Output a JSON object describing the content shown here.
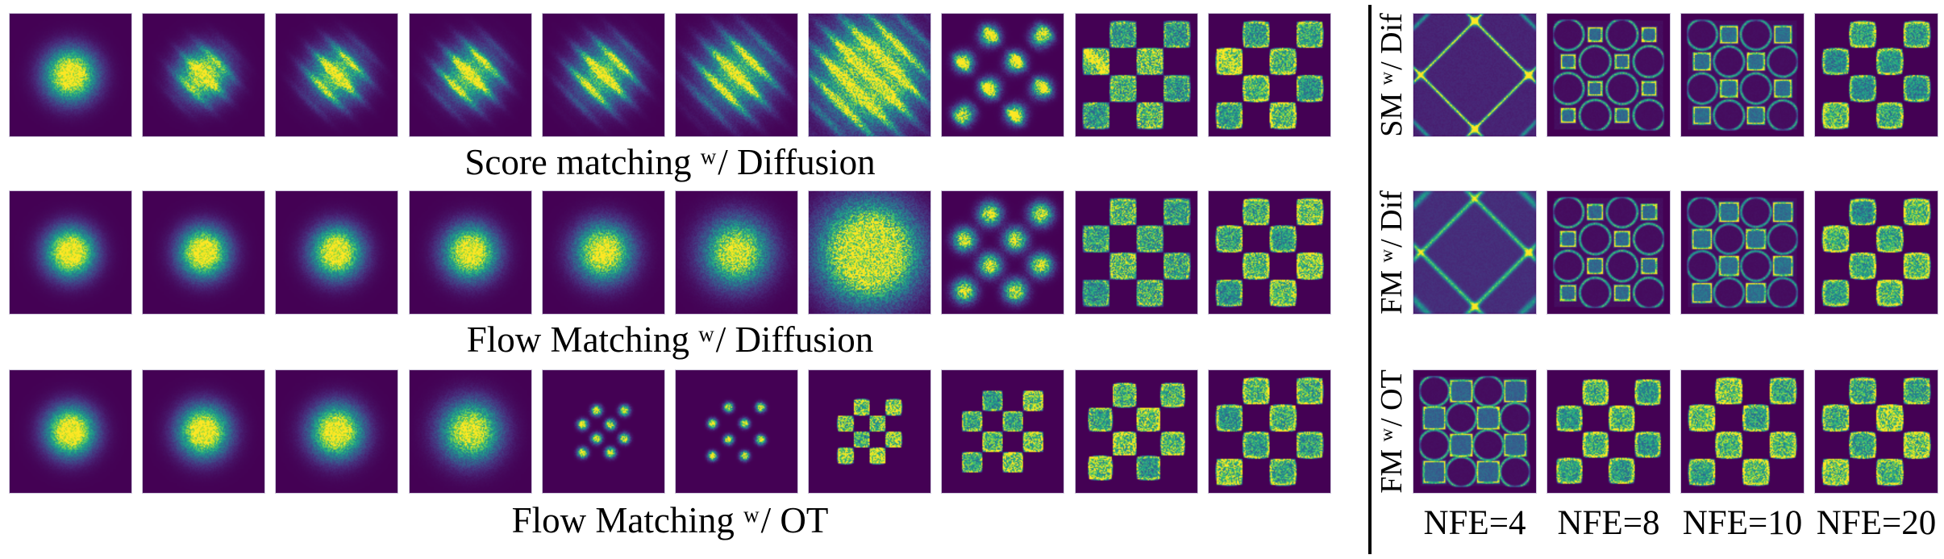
{
  "figure": {
    "colors": {
      "background": "#ffffff",
      "panel_background": "#440154",
      "panel_border": "#cfc8dc",
      "divider": "#000000",
      "text": "#000000",
      "colormap": "viridis"
    },
    "left": {
      "rows": [
        {
          "id": "score-matching-diffusion",
          "caption": {
            "prefix": "Score matching ",
            "sup": "w",
            "suffix": "/ Diffusion"
          },
          "panels": [
            {
              "type": "blob",
              "sigma": 0.27,
              "gain": 1.25,
              "noise": 0.25
            },
            {
              "type": "blob",
              "sigma": 0.27,
              "gain": 1.18,
              "stripe": 0.3,
              "freq": 14,
              "noise": 0.28
            },
            {
              "type": "blob",
              "sigma": 0.29,
              "gain": 1.05,
              "stripe": 0.5,
              "freq": 14,
              "noise": 0.3
            },
            {
              "type": "blob",
              "sigma": 0.3,
              "gain": 1.05,
              "stripe": 0.55,
              "freq": 14,
              "noise": 0.3
            },
            {
              "type": "blob",
              "sigma": 0.32,
              "gain": 1.0,
              "stripe": 0.6,
              "freq": 14,
              "noise": 0.32
            },
            {
              "type": "blob",
              "sigma": 0.38,
              "gain": 0.95,
              "stripe": 0.65,
              "freq": 13,
              "noise": 0.35
            },
            {
              "type": "cloud",
              "sigma": 0.52,
              "gain": 1.45,
              "stripe": 0.6,
              "freq": 13,
              "noise": 0.4
            },
            {
              "type": "checkerBlobs",
              "scale": 0.97,
              "bs": 0.105,
              "gain": 1.2,
              "stripe": 0.35,
              "freq": 13,
              "noise": 0.42
            },
            {
              "type": "checker",
              "blur": 0.12,
              "base": 0.58,
              "glow": 0.3,
              "noise": 0.5,
              "streak": 0.8
            },
            {
              "type": "checker",
              "blur": 0.06,
              "base": 0.58,
              "glow": 0.4,
              "noise": 0.46,
              "streak": 0.3
            }
          ]
        },
        {
          "id": "flow-matching-diffusion",
          "caption": {
            "prefix": "Flow Matching ",
            "sup": "w",
            "suffix": "/ Diffusion"
          },
          "panels": [
            {
              "type": "blob",
              "sigma": 0.26,
              "gain": 1.25,
              "noise": 0.22
            },
            {
              "type": "blob",
              "sigma": 0.26,
              "gain": 1.25,
              "noise": 0.24
            },
            {
              "type": "blob",
              "sigma": 0.27,
              "gain": 1.2,
              "noise": 0.26
            },
            {
              "type": "blob",
              "sigma": 0.28,
              "gain": 1.2,
              "noise": 0.28
            },
            {
              "type": "blob",
              "sigma": 0.3,
              "gain": 1.15,
              "noise": 0.3
            },
            {
              "type": "blob",
              "sigma": 0.35,
              "gain": 1.05,
              "noise": 0.34
            },
            {
              "type": "cloud",
              "sigma": 0.5,
              "gain": 1.5,
              "noise": 0.42
            },
            {
              "type": "checkerBlobs",
              "scale": 0.95,
              "bs": 0.125,
              "gain": 1.05,
              "noise": 0.42
            },
            {
              "type": "checker",
              "blur": 0.14,
              "base": 0.55,
              "glow": 0.25,
              "noise": 0.5
            },
            {
              "type": "checker",
              "blur": 0.06,
              "base": 0.58,
              "glow": 0.4,
              "noise": 0.46
            }
          ]
        },
        {
          "id": "flow-matching-ot",
          "caption": {
            "prefix": "Flow Matching ",
            "sup": "w",
            "suffix": "/ OT"
          },
          "panels": [
            {
              "type": "blob",
              "sigma": 0.26,
              "gain": 1.25,
              "noise": 0.22
            },
            {
              "type": "blob",
              "sigma": 0.27,
              "gain": 1.22,
              "noise": 0.24
            },
            {
              "type": "blob",
              "sigma": 0.28,
              "gain": 1.2,
              "noise": 0.26
            },
            {
              "type": "blob",
              "sigma": 0.31,
              "gain": 1.12,
              "noise": 0.3
            },
            {
              "type": "checkerBlobs",
              "scale": 0.52,
              "bs": 0.1,
              "gain": 1.25,
              "noise": 0.4
            },
            {
              "type": "checkerBlobs",
              "scale": 0.6,
              "bs": 0.078,
              "gain": 1.3,
              "noise": 0.4
            },
            {
              "type": "checker",
              "scale": 0.6,
              "blur": 0.09,
              "base": 0.72,
              "glow": 0.3,
              "noise": 0.48
            },
            {
              "type": "checker",
              "scale": 0.76,
              "blur": 0.07,
              "base": 0.62,
              "glow": 0.35,
              "noise": 0.46
            },
            {
              "type": "checker",
              "scale": 0.9,
              "blur": 0.06,
              "base": 0.6,
              "glow": 0.38,
              "noise": 0.46
            },
            {
              "type": "checker",
              "scale": 1.0,
              "blur": 0.055,
              "base": 0.58,
              "glow": 0.42,
              "noise": 0.46
            }
          ]
        }
      ]
    },
    "right": {
      "rows": [
        {
          "id": "sm-dif",
          "label": {
            "prefix": "SM ",
            "sup": "w",
            "suffix": "/ Dif"
          },
          "panels": [
            {
              "type": "web",
              "width": 0.03,
              "line": 0.85,
              "node": 1.0,
              "ambient": 0.1,
              "noise": 0.18
            },
            {
              "type": "pinch",
              "shrink": 0.5,
              "fill": 0.3,
              "edge": 0.85,
              "ring": 0.7,
              "corner": 1.5,
              "rrad": 1.15,
              "noise": 0.22
            },
            {
              "type": "pinch",
              "shrink": 0.62,
              "fill": 0.32,
              "edge": 0.8,
              "ring": 0.65,
              "corner": 1.3,
              "rrad": 1.12,
              "noise": 0.22
            },
            {
              "type": "checker",
              "blur": 0.07,
              "base": 0.52,
              "glow": 0.5,
              "round": 0.3,
              "noise": 0.42
            }
          ]
        },
        {
          "id": "fm-dif",
          "label": {
            "prefix": "FM ",
            "sup": "w",
            "suffix": "/ Dif"
          },
          "panels": [
            {
              "type": "web",
              "width": 0.05,
              "line": 0.6,
              "node": 0.75,
              "ambient": 0.13,
              "noise": 0.15
            },
            {
              "type": "pinch",
              "shrink": 0.55,
              "fill": 0.3,
              "edge": 0.8,
              "ring": 0.68,
              "corner": 1.4,
              "rrad": 1.13,
              "noise": 0.22
            },
            {
              "type": "pinch",
              "shrink": 0.7,
              "fill": 0.33,
              "edge": 0.78,
              "ring": 0.6,
              "corner": 1.2,
              "rrad": 1.1,
              "noise": 0.22
            },
            {
              "type": "checker",
              "blur": 0.07,
              "base": 0.53,
              "glow": 0.5,
              "round": 0.3,
              "noise": 0.42
            }
          ]
        },
        {
          "id": "fm-ot",
          "label": {
            "prefix": "FM ",
            "sup": "w",
            "suffix": "/ OT"
          },
          "panels": [
            {
              "type": "pinch",
              "shrink": 0.8,
              "fill": 0.28,
              "edge": 0.75,
              "ring": 0.7,
              "corner": 1.2,
              "rrad": 1.12,
              "noise": 0.2
            },
            {
              "type": "checker",
              "scale": 0.97,
              "blur": 0.08,
              "base": 0.54,
              "glow": 0.55,
              "round": 0.28,
              "noise": 0.44
            },
            {
              "type": "checker",
              "blur": 0.07,
              "base": 0.56,
              "glow": 0.5,
              "round": 0.26,
              "noise": 0.44
            },
            {
              "type": "checker",
              "blur": 0.06,
              "base": 0.62,
              "glow": 0.45,
              "round": 0.24,
              "noise": 0.46
            }
          ]
        }
      ],
      "nfe_labels": [
        "NFE=4",
        "NFE=8",
        "NFE=10",
        "NFE=20"
      ]
    },
    "layout": {
      "left_row_tops": [
        16,
        236,
        458
      ],
      "caption_tops": [
        172,
        392,
        616
      ],
      "checker_parity": "filled where (row+col) odd, 4x4 grid"
    }
  }
}
